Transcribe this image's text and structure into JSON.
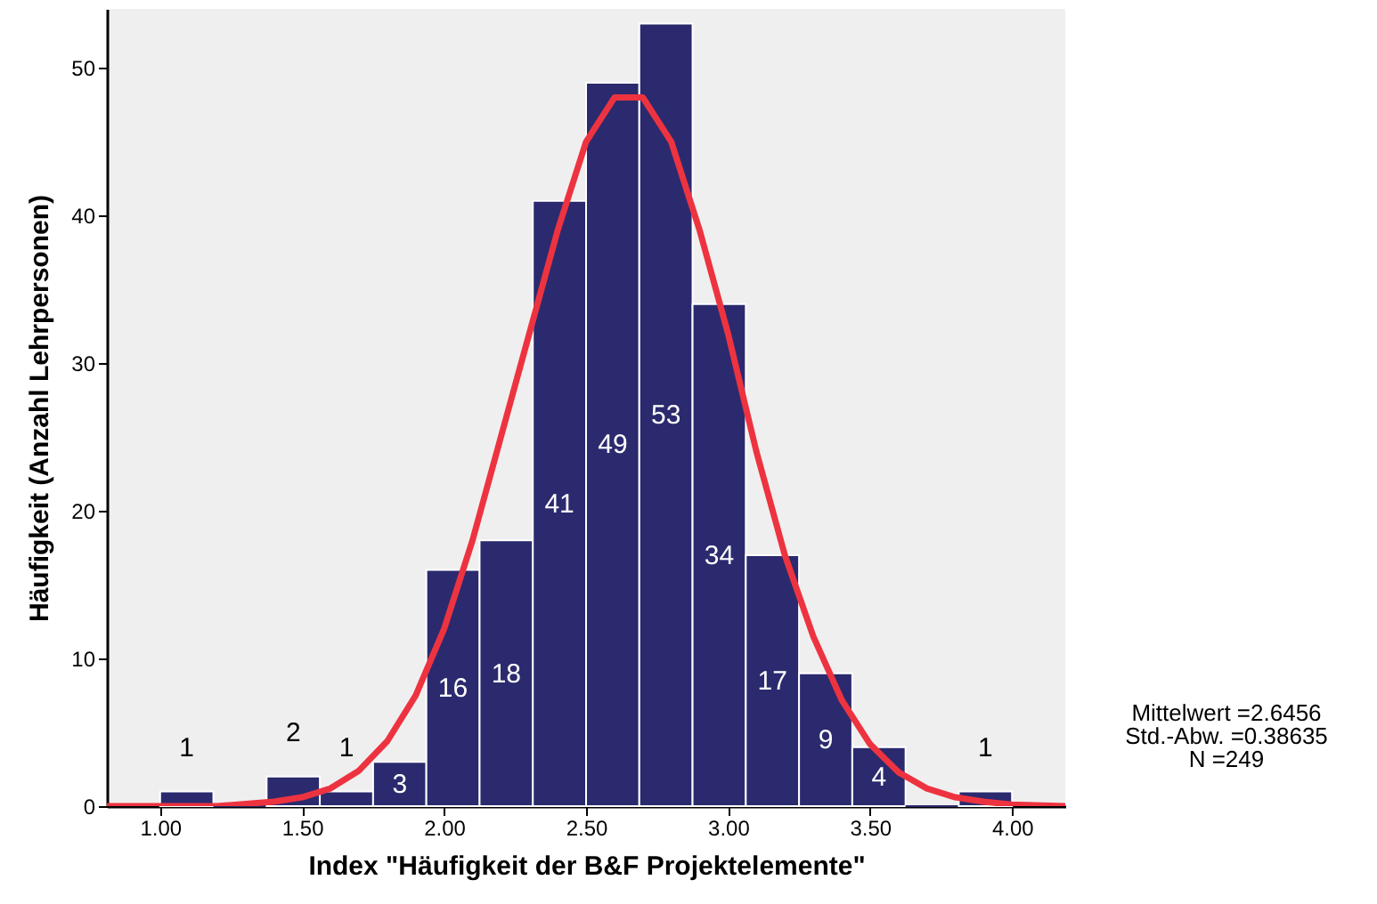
{
  "chart_data": {
    "type": "histogram",
    "xlabel": "Index \"Häufigkeit der B&F Projektelemente\"",
    "ylabel": "Häufigkeit (Anzahl Lehrpersonen)",
    "bins": [
      1.0,
      1.1875,
      1.375,
      1.5625,
      1.75,
      1.9375,
      2.125,
      2.3125,
      2.5,
      2.6875,
      2.875,
      3.0625,
      3.25,
      3.4375,
      3.625,
      3.8125,
      4.0
    ],
    "values": [
      1,
      0,
      2,
      1,
      3,
      16,
      18,
      41,
      49,
      53,
      34,
      17,
      9,
      4,
      0,
      1
    ],
    "value_labels": [
      "1",
      null,
      "2",
      "1",
      "3",
      "16",
      "18",
      "41",
      "49",
      "53",
      "34",
      "17",
      "9",
      "4",
      null,
      "1"
    ],
    "color": "#2b2a6e",
    "series": [
      {
        "type": "line",
        "color": "#ee3340",
        "x": [
          0.8125,
          1.0,
          1.2,
          1.4,
          1.5,
          1.6,
          1.7,
          1.8,
          1.9,
          2.0,
          2.1,
          2.2,
          2.3,
          2.4,
          2.5,
          2.6,
          2.6456,
          2.7,
          2.8,
          2.9,
          3.0,
          3.1,
          3.2,
          3.3,
          3.4,
          3.5,
          3.6,
          3.7,
          3.8,
          3.9,
          4.0,
          4.1875
        ],
        "values": [
          0,
          0,
          0,
          0.3,
          0.6,
          1.2,
          2.4,
          4.4,
          7.5,
          12,
          18,
          25,
          32,
          39,
          45,
          48,
          48,
          48,
          45,
          39,
          32,
          24,
          17,
          11.5,
          7.2,
          4.2,
          2.3,
          1.2,
          0.6,
          0.3,
          0.1,
          0
        ]
      }
    ],
    "xlim": [
      0.8125,
      4.1875
    ],
    "xticks": [
      {
        "value": 1,
        "label": "1.00"
      },
      {
        "value": 1.5,
        "label": "1.50"
      },
      {
        "value": 2,
        "label": "2.00"
      },
      {
        "value": 2.5,
        "label": "2.50"
      },
      {
        "value": 3,
        "label": "3.00"
      },
      {
        "value": 3.5,
        "label": "3.50"
      },
      {
        "value": 4,
        "label": "4.00"
      }
    ],
    "ylim": [
      0,
      54
    ],
    "yticks": [
      0,
      10,
      20,
      30,
      40,
      50
    ],
    "annotations": [
      "Mittelwert =2.6456",
      "Std.-Abw. =0.38635",
      "N =249"
    ]
  }
}
